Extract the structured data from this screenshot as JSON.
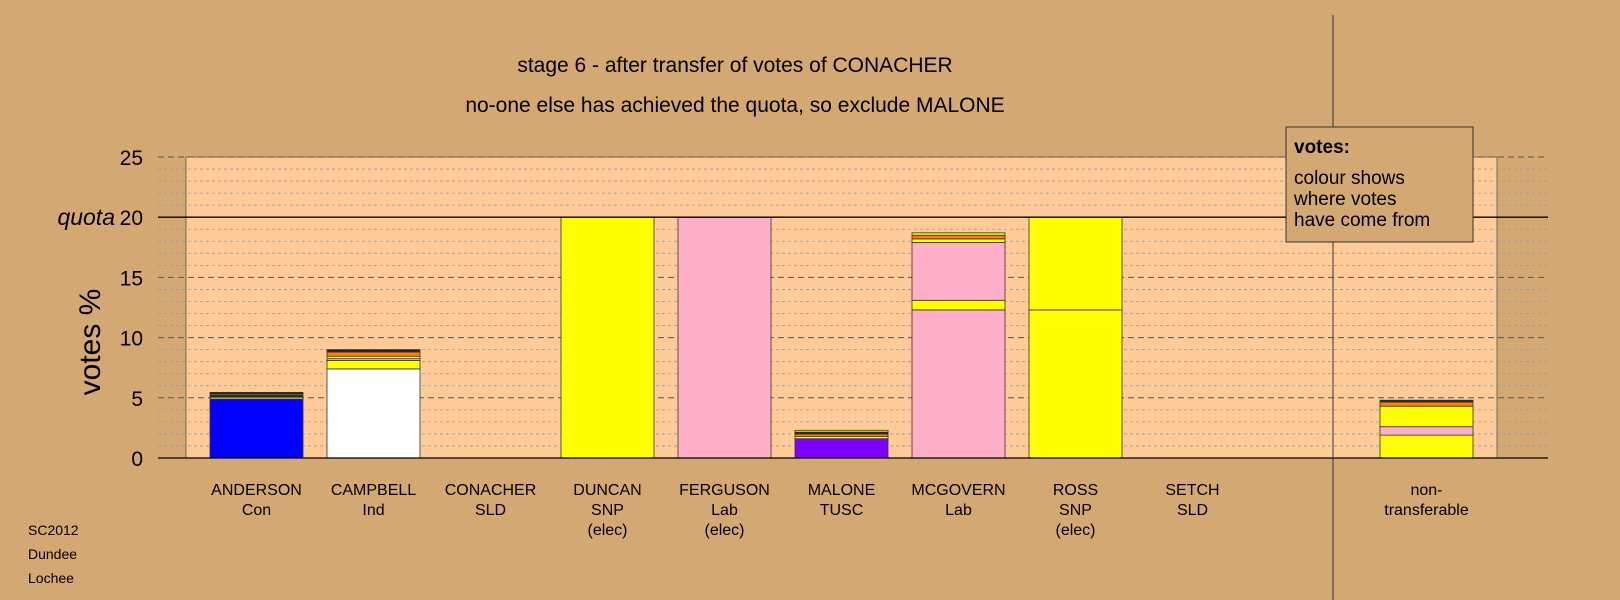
{
  "chart_data": {
    "type": "bar",
    "title": "stage 6 - after transfer of votes of CONACHER",
    "subtitle": "no-one else has achieved the quota, so exclude MALONE",
    "ylabel": "votes %",
    "ylim": [
      0,
      25
    ],
    "yticks": [
      0,
      5,
      10,
      15,
      20,
      25
    ],
    "quota_label": "quota",
    "quota_value": 20,
    "grid": true,
    "legend": {
      "position": "top-right",
      "heading": "votes:",
      "lines": [
        "colour shows",
        "where votes",
        "have come from"
      ]
    },
    "source": [
      "SC2012",
      "Dundee",
      "Lochee"
    ],
    "colors": {
      "Con": "#0000ff",
      "Ind": "#ffffff",
      "SNP": "#ffff00",
      "Lab": "#ffb0c8",
      "TUSC": "#8000ff",
      "orange": "#ff8000",
      "black": "#222222",
      "background": "#d4a873",
      "plot": "#ffcc99"
    },
    "categories": [
      {
        "name": "ANDERSON",
        "party": "Con",
        "note": "",
        "segments": [
          {
            "color": "Con",
            "value": 4.9
          },
          {
            "color": "SNP",
            "value": 0.15
          },
          {
            "color": "black",
            "value": 0.15
          },
          {
            "color": "orange",
            "value": 0.1
          },
          {
            "color": "black",
            "value": 0.15
          }
        ]
      },
      {
        "name": "CAMPBELL",
        "party": "Ind",
        "note": "",
        "segments": [
          {
            "color": "Ind",
            "value": 7.4
          },
          {
            "color": "SNP",
            "value": 0.7
          },
          {
            "color": "Lab",
            "value": 0.15
          },
          {
            "color": "SNP",
            "value": 0.2
          },
          {
            "color": "orange",
            "value": 0.35
          },
          {
            "color": "black",
            "value": 0.2
          }
        ]
      },
      {
        "name": "CONACHER",
        "party": "SLD",
        "note": "",
        "segments": []
      },
      {
        "name": "DUNCAN",
        "party": "SNP",
        "note": "(elec)",
        "segments": [
          {
            "color": "SNP",
            "value": 20
          }
        ]
      },
      {
        "name": "FERGUSON",
        "party": "Lab",
        "note": "(elec)",
        "segments": [
          {
            "color": "Lab",
            "value": 20
          }
        ]
      },
      {
        "name": "MALONE",
        "party": "TUSC",
        "note": "",
        "segments": [
          {
            "color": "TUSC",
            "value": 1.6
          },
          {
            "color": "SNP",
            "value": 0.2
          },
          {
            "color": "orange",
            "value": 0.2
          },
          {
            "color": "black",
            "value": 0.15
          },
          {
            "color": "SNP",
            "value": 0.15
          }
        ]
      },
      {
        "name": "MCGOVERN",
        "party": "Lab",
        "note": "",
        "segments": [
          {
            "color": "Lab",
            "value": 12.3
          },
          {
            "color": "SNP",
            "value": 0.8
          },
          {
            "color": "Lab",
            "value": 4.8
          },
          {
            "color": "SNP",
            "value": 0.3
          },
          {
            "color": "orange",
            "value": 0.3
          },
          {
            "color": "SNP",
            "value": 0.2
          }
        ]
      },
      {
        "name": "ROSS",
        "party": "SNP",
        "note": "(elec)",
        "segments": [
          {
            "color": "SNP",
            "value": 12.3
          },
          {
            "color": "SNP",
            "value": 7.7
          }
        ]
      },
      {
        "name": "SETCH",
        "party": "SLD",
        "note": "",
        "segments": []
      }
    ],
    "nontransferable": {
      "name": "non-",
      "party": "transferable",
      "segments": [
        {
          "color": "SNP",
          "value": 1.9
        },
        {
          "color": "Lab",
          "value": 0.7
        },
        {
          "color": "SNP",
          "value": 1.7
        },
        {
          "color": "orange",
          "value": 0.35
        },
        {
          "color": "black",
          "value": 0.15
        }
      ]
    }
  }
}
